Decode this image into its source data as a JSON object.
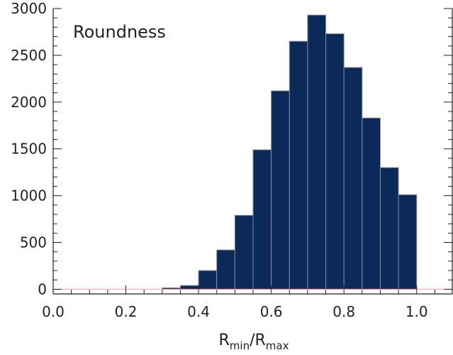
{
  "chart_data": {
    "type": "bar",
    "title": "Roundness",
    "xlabel": {
      "main": "R",
      "sub1": "min",
      "sep": "/R",
      "sub2": "max"
    },
    "ylabel": "",
    "xlim": [
      0.0,
      1.1
    ],
    "ylim": [
      -50,
      3000
    ],
    "xticks": [
      "0.0",
      "0.2",
      "0.4",
      "0.6",
      "0.8",
      "1.0"
    ],
    "yticks": [
      "0",
      "500",
      "1000",
      "1500",
      "2000",
      "2500",
      "3000"
    ],
    "bin_width": 0.05,
    "bin_starts": [
      0.0,
      0.05,
      0.1,
      0.15,
      0.2,
      0.25,
      0.3,
      0.35,
      0.4,
      0.45,
      0.5,
      0.55,
      0.6,
      0.65,
      0.7,
      0.75,
      0.8,
      0.85,
      0.9,
      0.95
    ],
    "values": [
      0,
      0,
      0,
      0,
      0,
      0,
      15,
      40,
      200,
      420,
      790,
      1490,
      2120,
      2650,
      2930,
      2730,
      2370,
      1830,
      1300,
      1010
    ],
    "bar_color": "#0b2a5a",
    "baseline_color": "#f0a0a0",
    "grid": false,
    "legend": "none"
  }
}
